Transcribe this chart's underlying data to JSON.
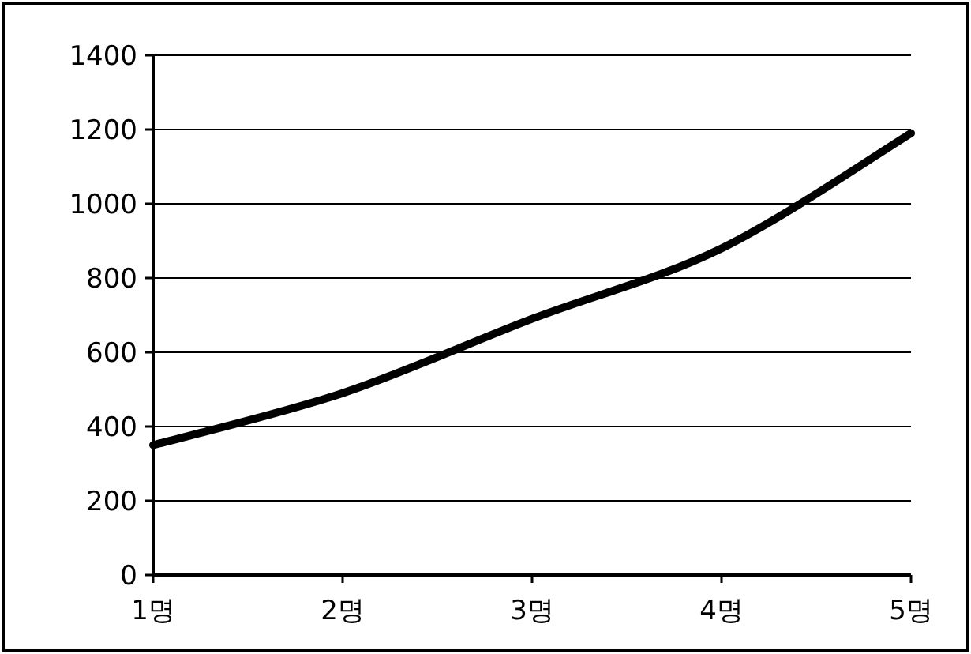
{
  "chart_data": {
    "type": "line",
    "categories": [
      "1명",
      "2명",
      "3명",
      "4명",
      "5명"
    ],
    "series": [
      {
        "color": "#000000",
        "values": [
          350,
          490,
          690,
          880,
          1190
        ]
      }
    ],
    "ylim": [
      0,
      1400
    ],
    "yticks": [
      0,
      200,
      400,
      600,
      800,
      1000,
      1200,
      1400
    ],
    "grid": "y",
    "marker": "none",
    "line_style": "solid"
  }
}
